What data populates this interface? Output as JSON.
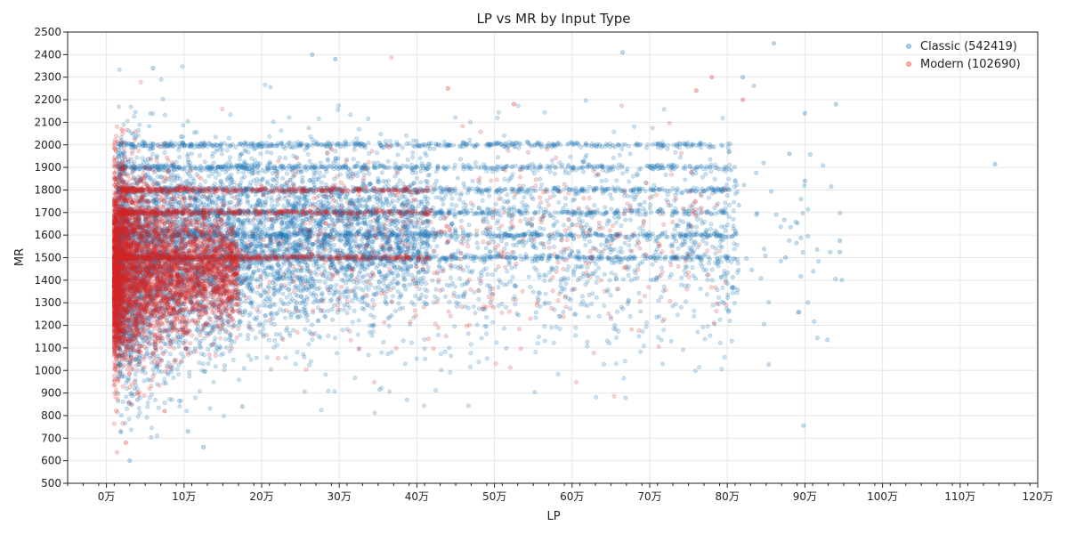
{
  "chart_data": {
    "type": "scatter",
    "title": "LP vs MR by Input Type",
    "xlabel": "LP",
    "ylabel": "MR",
    "xlim": [
      -50000,
      1200000
    ],
    "ylim": [
      500,
      2500
    ],
    "x_ticks": [
      {
        "value": 0,
        "label": "0万"
      },
      {
        "value": 100000,
        "label": "10万"
      },
      {
        "value": 200000,
        "label": "20万"
      },
      {
        "value": 300000,
        "label": "30万"
      },
      {
        "value": 400000,
        "label": "40万"
      },
      {
        "value": 500000,
        "label": "50万"
      },
      {
        "value": 600000,
        "label": "60万"
      },
      {
        "value": 700000,
        "label": "70万"
      },
      {
        "value": 800000,
        "label": "80万"
      },
      {
        "value": 900000,
        "label": "90万"
      },
      {
        "value": 1000000,
        "label": "100万"
      },
      {
        "value": 1100000,
        "label": "110万"
      },
      {
        "value": 1200000,
        "label": "120万"
      }
    ],
    "y_ticks": [
      500,
      600,
      700,
      800,
      900,
      1000,
      1100,
      1200,
      1300,
      1400,
      1500,
      1600,
      1700,
      1800,
      1900,
      2000,
      2100,
      2200,
      2300,
      2400,
      2500
    ],
    "grid": true,
    "legend_position": "top-right",
    "series": [
      {
        "name": "Classic (542419)",
        "color": "#1f77b4",
        "count": 542419,
        "distribution": {
          "main_cluster": {
            "x_range": [
              15000,
              450000
            ],
            "y_center": 1450,
            "y_spread": 300
          },
          "level_bands": [
            1500,
            1600,
            1700,
            1800,
            1900,
            2000
          ],
          "outliers": [
            [
              860000,
              2450
            ],
            [
              940000,
              2180
            ],
            [
              1145000,
              1915
            ],
            [
              945000,
              1575
            ],
            [
              945000,
              1525
            ],
            [
              900000,
              1840
            ],
            [
              880000,
              1960
            ],
            [
              900000,
              2140
            ],
            [
              875000,
              1500
            ],
            [
              265000,
              2400
            ],
            [
              295000,
              2380
            ],
            [
              60000,
              2340
            ],
            [
              30000,
              600
            ],
            [
              40000,
              870
            ],
            [
              105000,
              730
            ],
            [
              125000,
              660
            ],
            [
              175000,
              840
            ],
            [
              85000,
              1650
            ],
            [
              665000,
              2410
            ],
            [
              820000,
              2300
            ]
          ]
        }
      },
      {
        "name": "Modern (102690)",
        "color": "#d62728",
        "count": 102690,
        "distribution": {
          "main_cluster": {
            "x_range": [
              10000,
              120000
            ],
            "y_center": 1450,
            "y_spread": 280
          },
          "level_bands": [
            1500,
            1700,
            1800
          ],
          "outliers": [
            [
              25000,
              680
            ],
            [
              40000,
              900
            ],
            [
              75000,
              820
            ],
            [
              290000,
              1980
            ],
            [
              440000,
              2250
            ],
            [
              525000,
              2180
            ],
            [
              625000,
              1500
            ],
            [
              760000,
              2240
            ],
            [
              780000,
              2300
            ],
            [
              820000,
              2200
            ]
          ]
        }
      }
    ]
  }
}
